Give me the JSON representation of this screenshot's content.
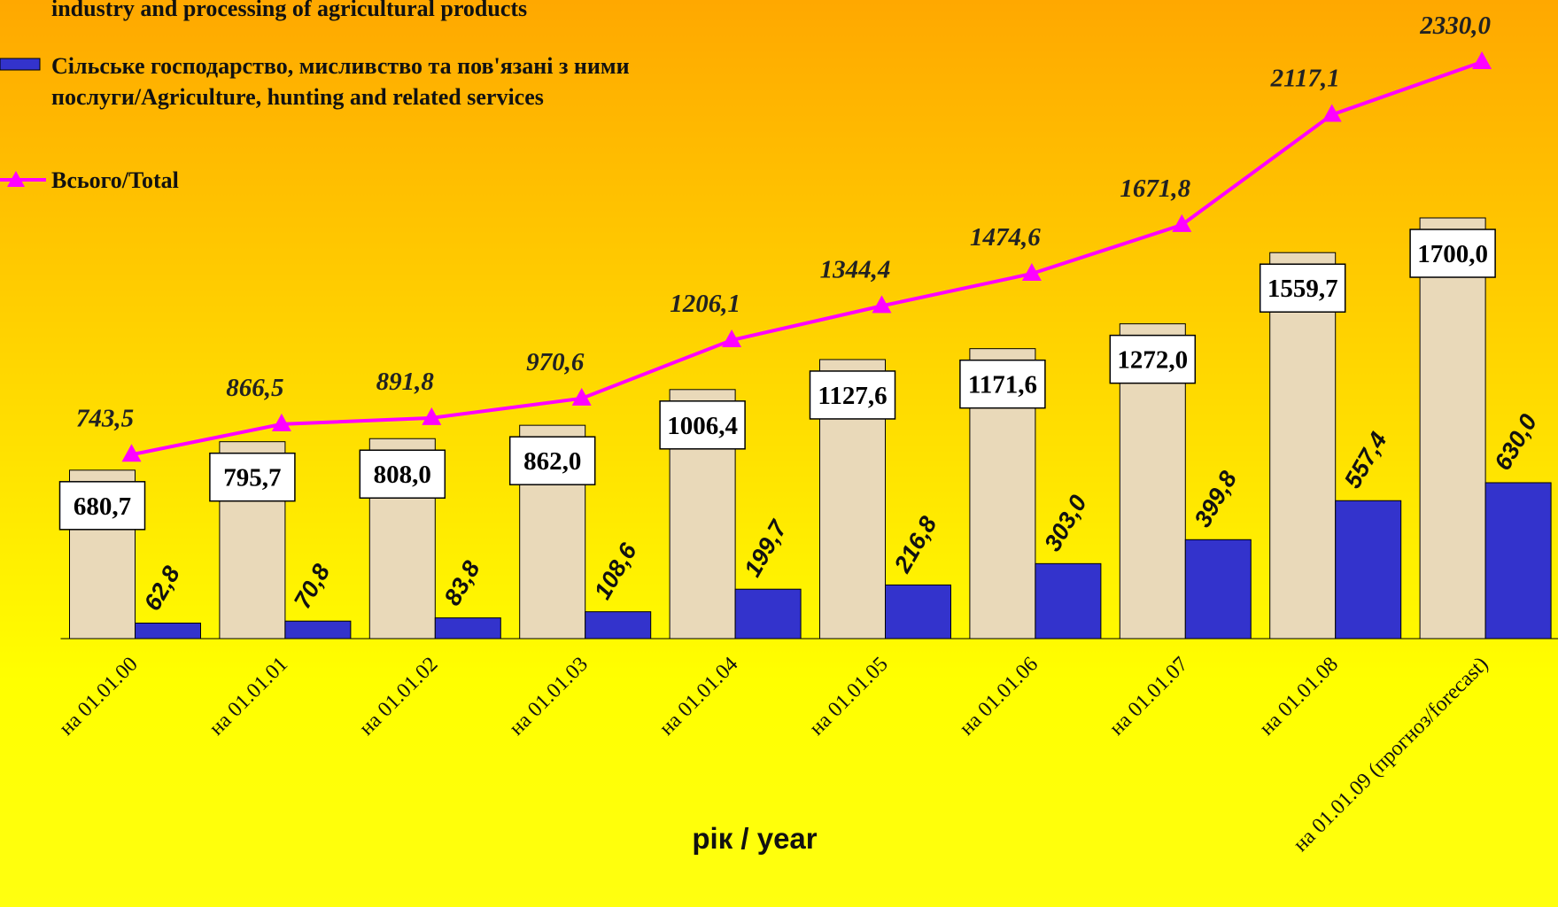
{
  "chart_data": {
    "type": "bar",
    "x_label": "рік / year",
    "categories": [
      "на 01.01.00",
      "на 01.01.01",
      "на 01.01.02",
      "на 01.01.03",
      "на 01.01.04",
      "на 01.01.05",
      "на 01.01.06",
      "на 01.01.07",
      "на 01.01.08",
      "на 01.01.09 (прогноз/forecast)"
    ],
    "series": [
      {
        "name": "industry and processing of agricultural products",
        "type": "bar",
        "color": "#e9d9b9",
        "values": [
          680.7,
          795.7,
          808.0,
          862.0,
          1006.4,
          1127.6,
          1171.6,
          1272.0,
          1559.7,
          1700.0
        ],
        "value_labels": [
          "680,7",
          "795,7",
          "808,0",
          "862,0",
          "1006,4",
          "1127,6",
          "1171,6",
          "1272,0",
          "1559,7",
          "1700,0"
        ]
      },
      {
        "name": "Сільське господарство, мисливство та пов'язані  з ними послуги/Agriculture, hunting and related services",
        "type": "bar",
        "color": "#3333cc",
        "values": [
          62.8,
          70.8,
          83.8,
          108.6,
          199.7,
          216.8,
          303.0,
          399.8,
          557.4,
          630.0
        ],
        "value_labels": [
          "62,8",
          "70,8",
          "83,8",
          "108,6",
          "199,7",
          "216,8",
          "303,0",
          "399,8",
          "557,4",
          "630,0"
        ]
      },
      {
        "name": "Всього/Total",
        "type": "line",
        "color": "#ff00ff",
        "values": [
          743.5,
          866.5,
          891.8,
          970.6,
          1206.1,
          1344.4,
          1474.6,
          1671.8,
          2117.1,
          2330.0
        ],
        "value_labels": [
          "743,5",
          "866,5",
          "891,8",
          "970,6",
          "1206,1",
          "1344,4",
          "1474,6",
          "1671,8",
          "2117,1",
          "2330,0"
        ]
      }
    ]
  }
}
